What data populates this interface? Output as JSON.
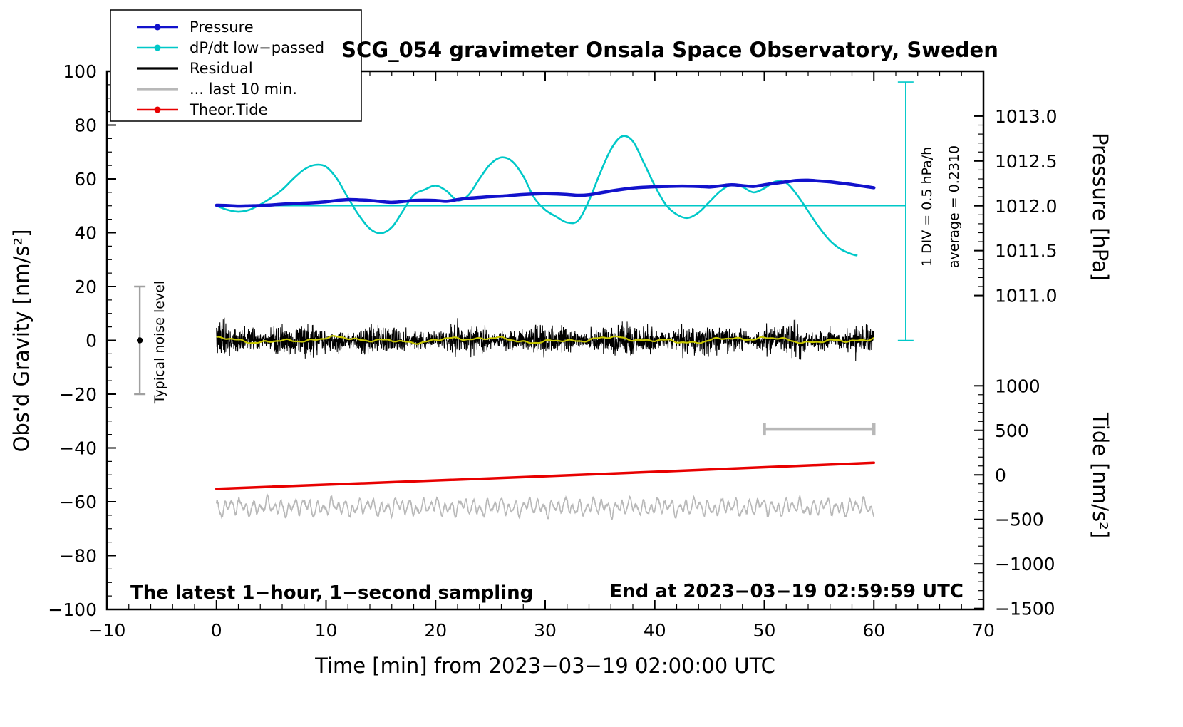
{
  "chart_data": {
    "type": "line",
    "title": "SCG_054 gravimeter Onsala Space Observatory, Sweden",
    "xlabel": "Time [min] from 2023−03−19 02:00:00 UTC",
    "ylabel_left": "Obs'd Gravity [nm/s²]",
    "ylabel_right_pressure": "Pressure [hPa]",
    "ylabel_right_tide": "Tide [nm/s²]",
    "xlim": [
      -10,
      70
    ],
    "ylim_left": [
      -100,
      100
    ],
    "x_ticks": [
      -10,
      0,
      10,
      20,
      30,
      40,
      50,
      60,
      70
    ],
    "y_ticks_left": [
      -100,
      -80,
      -60,
      -40,
      -20,
      0,
      20,
      40,
      60,
      80,
      100
    ],
    "pressure_axis": {
      "ticks": [
        1011.0,
        1011.5,
        1012.0,
        1012.5,
        1013.0
      ],
      "ref_hpa": 1012.0,
      "ref_gravity": 50,
      "gravity_per_hpa": 33.33
    },
    "tide_axis": {
      "ticks": [
        1000,
        500,
        0,
        -500,
        -1000,
        -1500
      ],
      "ref_gravity": -50,
      "gravity_per_unit": 0.0331
    },
    "legend": [
      {
        "label": "Pressure",
        "color": "#1212cc",
        "dot": true
      },
      {
        "label": "dP/dt low−passed",
        "color": "#00c8c8",
        "dot": true
      },
      {
        "label": "Residual",
        "color": "#000000",
        "dot": false
      },
      {
        "label": "... last 10 min.",
        "color": "#b8b8b8",
        "dot": false
      },
      {
        "label": "Theor.Tide",
        "color": "#e80000",
        "dot": true
      }
    ],
    "series": {
      "pressure": {
        "color": "#1212cc",
        "x": [
          0,
          1,
          2,
          3,
          4,
          5,
          6,
          7,
          8,
          9,
          10,
          11,
          12,
          13,
          14,
          15,
          16,
          17,
          18,
          19,
          20,
          21,
          22,
          23,
          24,
          25,
          26,
          27,
          28,
          29,
          30,
          31,
          32,
          33,
          34,
          35,
          36,
          37,
          38,
          39,
          40,
          41,
          42,
          43,
          44,
          45,
          46,
          47,
          48,
          49,
          50,
          51,
          52,
          53,
          54,
          55,
          56,
          57,
          58,
          59,
          60
        ],
        "y": [
          50.2,
          50.1,
          49.9,
          50.0,
          50.1,
          50.3,
          50.6,
          50.8,
          51.0,
          51.2,
          51.5,
          52.0,
          52.3,
          52.2,
          52.0,
          51.6,
          51.3,
          51.6,
          52.0,
          52.1,
          52.0,
          51.7,
          52.3,
          52.8,
          53.1,
          53.4,
          53.6,
          53.9,
          54.2,
          54.4,
          54.5,
          54.4,
          54.2,
          53.9,
          54.1,
          54.8,
          55.5,
          56.1,
          56.6,
          56.9,
          57.1,
          57.2,
          57.3,
          57.3,
          57.2,
          57.0,
          57.4,
          57.8,
          57.5,
          57.2,
          57.8,
          58.4,
          58.9,
          59.4,
          59.5,
          59.2,
          58.9,
          58.4,
          57.9,
          57.3,
          56.7
        ]
      },
      "dpdt": {
        "color": "#00c8c8",
        "x": [
          0,
          1,
          2,
          3,
          4,
          5,
          6,
          7,
          8,
          9,
          10,
          11,
          12,
          13,
          14,
          15,
          16,
          17,
          18,
          19,
          20,
          21,
          22,
          23,
          24,
          25,
          26,
          27,
          28,
          29,
          30,
          31,
          32,
          33,
          34,
          35,
          36,
          37,
          38,
          39,
          40,
          41,
          42,
          43,
          44,
          45,
          46,
          47,
          48,
          49,
          50,
          51,
          52,
          53,
          54,
          55,
          56,
          57,
          58,
          58.5
        ],
        "y": [
          50,
          48.5,
          47.8,
          48.5,
          50.5,
          53,
          56,
          60,
          63.5,
          65.2,
          64.5,
          60,
          53,
          46.5,
          41.5,
          39.8,
          42,
          48,
          54,
          56,
          57.5,
          55.5,
          52,
          54,
          60,
          65.5,
          68,
          66.5,
          61,
          53,
          48.5,
          46,
          43.8,
          44.5,
          52,
          62,
          71,
          75.8,
          74,
          66,
          57.5,
          50.5,
          46.8,
          45.5,
          47.5,
          51.5,
          55.5,
          57.8,
          57,
          55,
          56.5,
          59,
          58.5,
          54,
          48,
          42,
          37,
          33.8,
          32,
          31.5
        ]
      },
      "dpdt_mean_line": {
        "y": 50,
        "x_start": 0,
        "x_end": 62.9
      },
      "div_bar": {
        "x": 62.9,
        "g_top": 96,
        "g_bottom": 0
      },
      "residual": {
        "color": "#000000",
        "baseline": 0,
        "sigma": 2.1,
        "clip": 9.5,
        "x_start": 0,
        "x_end": 60
      },
      "residual_smooth": {
        "color": "#c8c800",
        "amplitude": 1.3
      },
      "last10": {
        "color": "#b8b8b8",
        "baseline": -62,
        "amplitude": 3.2,
        "x_start": 0,
        "x_end": 60
      },
      "tide": {
        "color": "#e80000",
        "x": [
          0,
          30,
          60
        ],
        "y": [
          -55.2,
          -50.5,
          -45.5
        ]
      },
      "last10_marker": {
        "g": -33,
        "x_start": 50,
        "x_end": 60,
        "color": "#b8b8b8"
      }
    },
    "annotations": {
      "noise_bar": {
        "x": -7,
        "g_min": -20,
        "g_max": 20,
        "label": "Typical noise level"
      },
      "div_label": "1 DIV = 0.5 hPa/h",
      "average_label": "average = 0.2310",
      "bottom_left": "The latest 1−hour, 1−second sampling",
      "bottom_right": "End at 2023−03−19 02:59:59 UTC"
    }
  }
}
